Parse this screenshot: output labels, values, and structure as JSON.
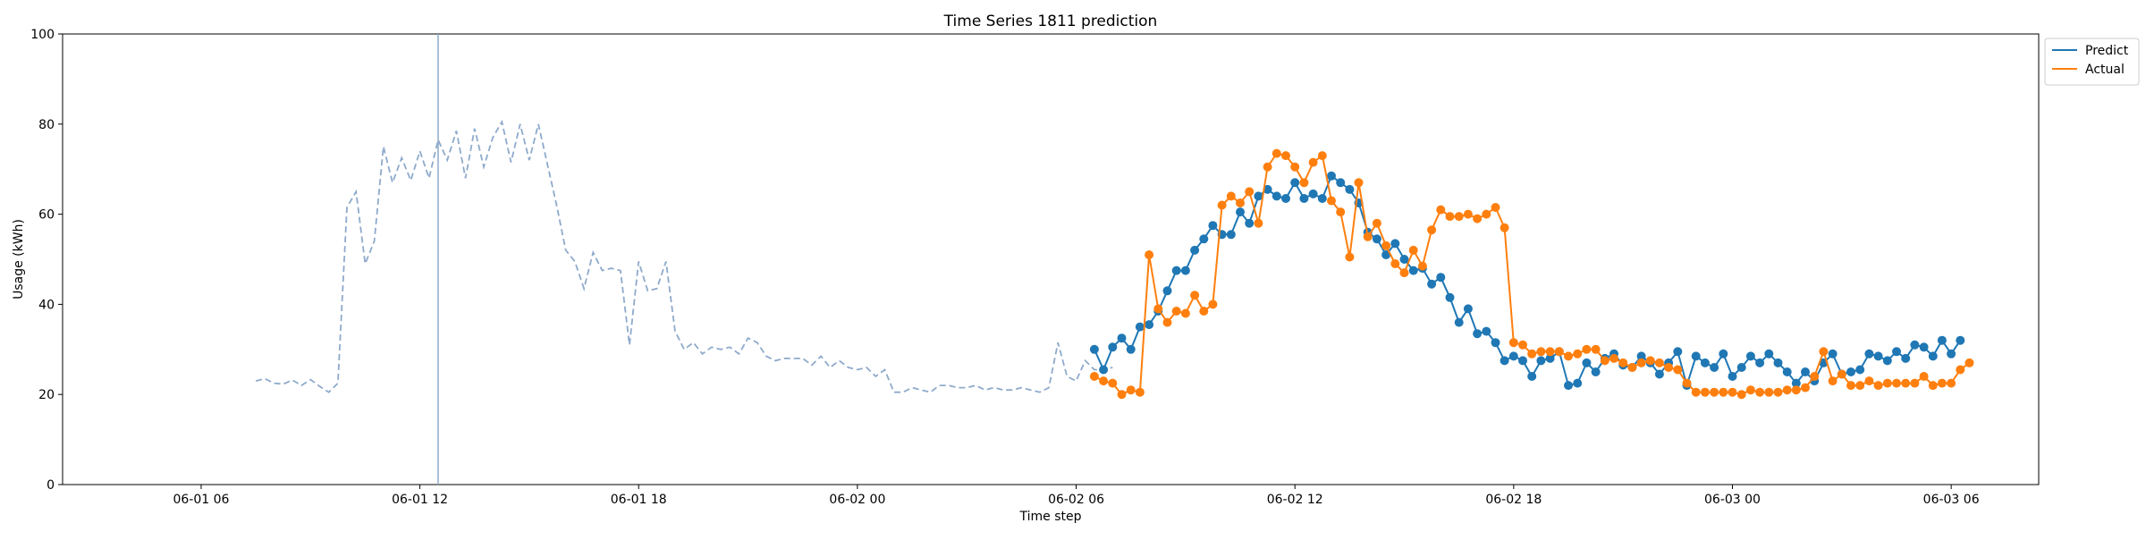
{
  "chart_data": {
    "type": "line",
    "title": "Time Series 1811 prediction",
    "xlabel": "Time step",
    "ylabel": "Usage (kWh)",
    "ylim": [
      0,
      100
    ],
    "yticks": [
      0,
      20,
      40,
      60,
      80,
      100
    ],
    "xlim_hours": [
      -3.8,
      50.4
    ],
    "xticks": [
      {
        "t": 0,
        "label": "06-01 06"
      },
      {
        "t": 6,
        "label": "06-01 12"
      },
      {
        "t": 12,
        "label": "06-01 18"
      },
      {
        "t": 18,
        "label": "06-02 00"
      },
      {
        "t": 24,
        "label": "06-02 06"
      },
      {
        "t": 30,
        "label": "06-02 12"
      },
      {
        "t": 36,
        "label": "06-02 18"
      },
      {
        "t": 42,
        "label": "06-03 00"
      },
      {
        "t": 48,
        "label": "06-03 06"
      }
    ],
    "x_unit_note": "x values are hours after 06-01 06:00",
    "forecast_start": 6.5,
    "grid": false,
    "legend_position": "outside top-right",
    "series": [
      {
        "name": "",
        "role": "history",
        "color": "#8eaacb",
        "style": "dashed",
        "markers": false,
        "x_start": 1.5,
        "x_step": 0.25,
        "values": [
          23,
          23.5,
          22.5,
          22.3,
          23.2,
          22,
          23.3,
          21.8,
          20.5,
          22.5,
          61.5,
          65,
          49,
          54,
          75,
          67,
          72.5,
          67.5,
          74,
          68,
          76.5,
          72,
          78.5,
          68,
          79,
          70.5,
          77,
          80.5,
          71.5,
          80,
          72,
          80,
          71,
          62,
          52,
          49.5,
          43.5,
          51.5,
          47.5,
          48,
          47.5,
          31,
          49.5,
          43,
          43.5,
          49.5,
          34,
          30,
          31.5,
          29,
          30.5,
          30,
          30.5,
          29,
          32.5,
          31.5,
          28.5,
          27.5,
          28,
          28,
          28,
          26.5,
          28.5,
          26,
          27.5,
          26,
          25.5,
          26,
          24,
          25.5,
          20.5,
          20.5,
          21.5,
          21,
          20.5,
          22,
          22,
          21.5,
          21.5,
          22,
          21,
          21.5,
          21,
          21,
          21.5,
          21,
          20.5,
          21.5,
          31.5,
          24,
          23,
          27.5,
          25.5,
          25.5,
          26
        ]
      },
      {
        "name": "Predict",
        "role": "prediction",
        "color": "#1f77b4",
        "style": "solid",
        "markers": true,
        "x_start": 24.5,
        "x_step": 0.25,
        "values": [
          30,
          25.5,
          30.5,
          32.5,
          30,
          35,
          35.5,
          38.5,
          43,
          47.5,
          47.5,
          52,
          54.5,
          57.5,
          55.5,
          55.5,
          60.5,
          58,
          64,
          65.5,
          64,
          63.5,
          67,
          63.5,
          64.5,
          63.5,
          68.5,
          67,
          65.5,
          62.5,
          56,
          54.5,
          51,
          53.5,
          50,
          47.5,
          48,
          44.5,
          46,
          41.5,
          36,
          39,
          33.5,
          34,
          31.5,
          27.5,
          28.5,
          27.5,
          24,
          27.5,
          28,
          29.5,
          22,
          22.5,
          27,
          25,
          28,
          29,
          26.5,
          26,
          28.5,
          27,
          24.5,
          27,
          29.5,
          22,
          28.5,
          27,
          26,
          29,
          24,
          26,
          28.5,
          27,
          29,
          27,
          25,
          22.5,
          25,
          23,
          27,
          29,
          24.5,
          25,
          25.5,
          29,
          28.5,
          27.5,
          29.5,
          28,
          31,
          30.5,
          28.5,
          32,
          29,
          32
        ]
      },
      {
        "name": "Actual",
        "role": "actual",
        "color": "#ff7f0e",
        "style": "solid",
        "markers": true,
        "x_start": 24.5,
        "x_step": 0.25,
        "values": [
          24,
          23,
          22.5,
          20,
          21,
          20.5,
          51,
          39,
          36,
          38.5,
          38,
          42,
          38.5,
          40,
          62,
          64,
          62.5,
          65,
          58,
          70.5,
          73.5,
          73,
          70.5,
          67,
          71.5,
          73,
          63,
          60.5,
          50.5,
          67,
          55,
          58,
          53,
          49,
          47,
          52,
          48.5,
          56.5,
          61,
          59.5,
          59.5,
          60,
          59,
          60,
          61.5,
          57,
          31.5,
          31,
          29,
          29.5,
          29.5,
          29.5,
          28.5,
          29,
          30,
          30,
          27.5,
          28,
          27,
          26,
          27,
          27.5,
          27,
          26,
          25.5,
          22.5,
          20.5,
          20.5,
          20.5,
          20.5,
          20.5,
          20,
          21,
          20.5,
          20.5,
          20.5,
          21,
          21,
          21.5,
          24,
          29.5,
          23,
          24.5,
          22,
          22,
          23,
          22,
          22.5,
          22.5,
          22.5,
          22.5,
          24,
          22,
          22.5,
          22.5,
          25.5,
          27
        ]
      }
    ]
  }
}
